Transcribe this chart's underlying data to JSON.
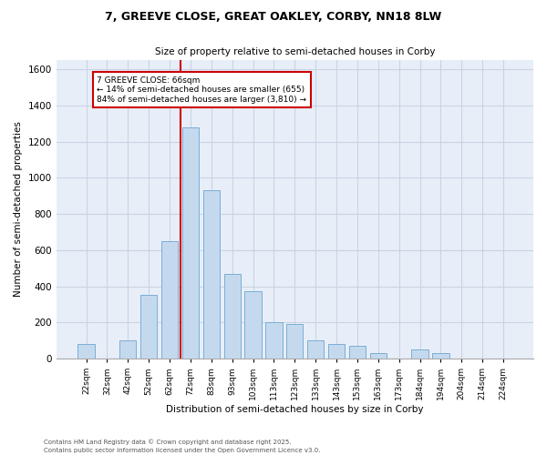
{
  "title_line1": "7, GREEVE CLOSE, GREAT OAKLEY, CORBY, NN18 8LW",
  "title_line2": "Size of property relative to semi-detached houses in Corby",
  "xlabel": "Distribution of semi-detached houses by size in Corby",
  "ylabel": "Number of semi-detached properties",
  "footer_line1": "Contains HM Land Registry data © Crown copyright and database right 2025.",
  "footer_line2": "Contains public sector information licensed under the Open Government Licence v3.0.",
  "categories": [
    "22sqm",
    "32sqm",
    "42sqm",
    "52sqm",
    "62sqm",
    "72sqm",
    "83sqm",
    "93sqm",
    "103sqm",
    "113sqm",
    "123sqm",
    "133sqm",
    "143sqm",
    "153sqm",
    "163sqm",
    "173sqm",
    "184sqm",
    "194sqm",
    "204sqm",
    "214sqm",
    "224sqm"
  ],
  "values": [
    80,
    0,
    100,
    350,
    650,
    1280,
    930,
    470,
    370,
    200,
    190,
    100,
    80,
    70,
    30,
    0,
    50,
    30,
    0,
    0,
    0
  ],
  "bar_color": "#c5d9ee",
  "bar_edge_color": "#7aaed4",
  "grid_color": "#c8d4e4",
  "background_color": "#e8eef8",
  "property_label": "7 GREEVE CLOSE: 66sqm",
  "pct_smaller": 14,
  "pct_larger": 84,
  "num_smaller": 655,
  "num_larger": 3810,
  "vline_bin_index": 4,
  "annotation_box_color": "#cc0000",
  "ylim": [
    0,
    1650
  ],
  "yticks": [
    0,
    200,
    400,
    600,
    800,
    1000,
    1200,
    1400,
    1600
  ]
}
